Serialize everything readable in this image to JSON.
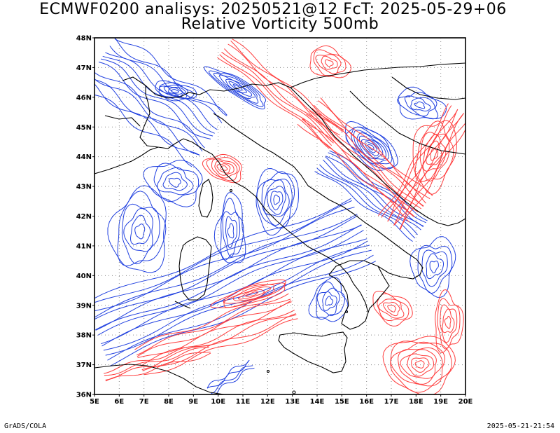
{
  "title_line1": "ECMWF0200 analisys: 20250521@12 FcT: 2025-05-29+06",
  "title_line2": "Relative Vorticity 500mb",
  "footer_left": "GrADS/COLA",
  "footer_right": "2025-05-21-21:54",
  "lat_labels": [
    "48N",
    "47N",
    "46N",
    "45N",
    "44N",
    "43N",
    "42N",
    "41N",
    "40N",
    "39N",
    "38N",
    "37N",
    "36N"
  ],
  "lon_labels": [
    "5E",
    "6E",
    "7E",
    "8E",
    "9E",
    "10E",
    "11E",
    "12E",
    "13E",
    "14E",
    "15E",
    "16E",
    "17E",
    "18E",
    "19E",
    "20E"
  ],
  "colors": {
    "positive": "#ff3c3c",
    "negative": "#2040e0",
    "coast": "#000000",
    "grid": "#888888"
  }
}
